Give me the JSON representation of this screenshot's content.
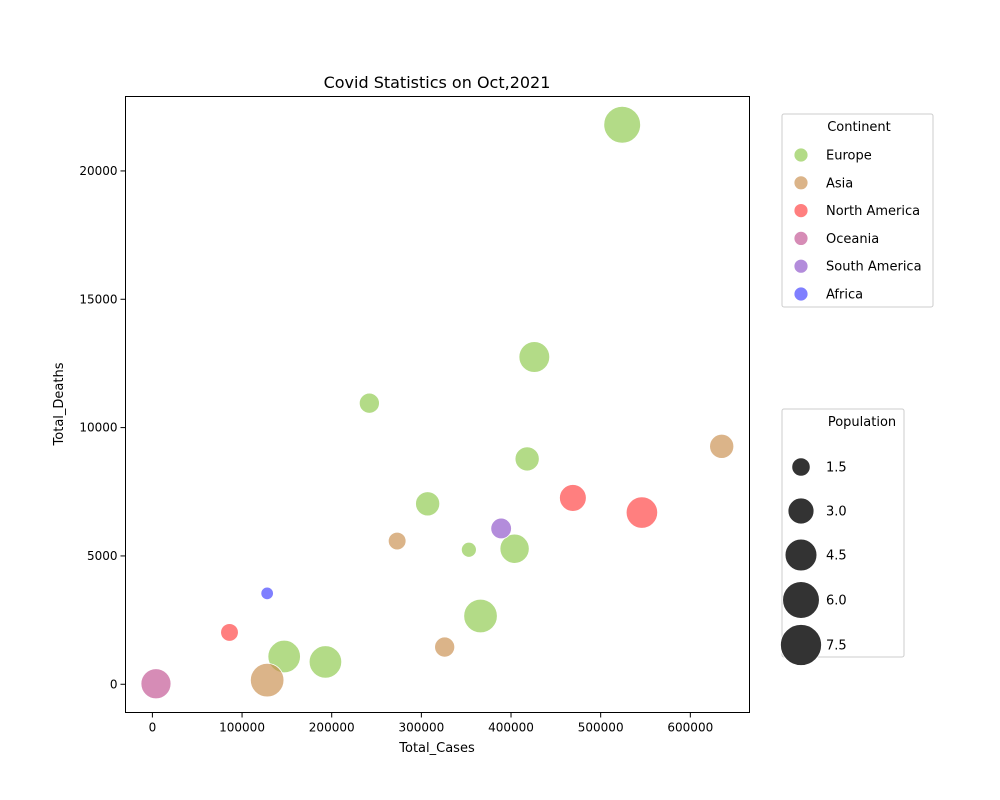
{
  "chart_data": {
    "type": "scatter",
    "title": "Covid Statistics on Oct,2021",
    "xlabel": "Total_Cases",
    "ylabel": "Total_Deaths",
    "xlim": [
      -30000,
      666000
    ],
    "ylim": [
      -1100,
      22900
    ],
    "xticks": [
      0,
      100000,
      200000,
      300000,
      400000,
      500000,
      600000
    ],
    "yticks": [
      0,
      5000,
      10000,
      15000,
      20000
    ],
    "grid": false,
    "continent_legend": {
      "title": "Continent",
      "placement": "outside-right-top",
      "entries": [
        {
          "name": "Europe",
          "color": "#8ac847"
        },
        {
          "name": "Asia",
          "color": "#c88c4a"
        },
        {
          "name": "North America",
          "color": "#ff3b3b"
        },
        {
          "name": "Oceania",
          "color": "#c04f8f"
        },
        {
          "name": "South America",
          "color": "#8a4fc8"
        },
        {
          "name": "Africa",
          "color": "#3a3aff"
        }
      ]
    },
    "population_legend": {
      "title": "Population",
      "placement": "outside-right-middle",
      "color": "#333333",
      "entries": [
        {
          "label": "1.5",
          "value": 1.5
        },
        {
          "label": "3.0",
          "value": 3.0
        },
        {
          "label": "4.5",
          "value": 4.5
        },
        {
          "label": "6.0",
          "value": 6.0
        },
        {
          "label": "7.5",
          "value": 7.5
        }
      ]
    },
    "points": [
      {
        "continent": "Europe",
        "x": 524000,
        "y": 21800,
        "population": 6.0
      },
      {
        "continent": "Europe",
        "x": 426000,
        "y": 12750,
        "population": 4.2
      },
      {
        "continent": "Europe",
        "x": 242000,
        "y": 10950,
        "population": 1.8
      },
      {
        "continent": "Europe",
        "x": 418000,
        "y": 8780,
        "population": 2.6
      },
      {
        "continent": "Europe",
        "x": 307000,
        "y": 7030,
        "population": 2.6
      },
      {
        "continent": "Europe",
        "x": 353000,
        "y": 5240,
        "population": 1.0
      },
      {
        "continent": "Europe",
        "x": 404000,
        "y": 5280,
        "population": 3.8
      },
      {
        "continent": "Europe",
        "x": 366000,
        "y": 2660,
        "population": 5.0
      },
      {
        "continent": "Europe",
        "x": 147000,
        "y": 1080,
        "population": 4.7
      },
      {
        "continent": "Europe",
        "x": 193000,
        "y": 870,
        "population": 4.7
      },
      {
        "continent": "Asia",
        "x": 635000,
        "y": 9270,
        "population": 2.6
      },
      {
        "continent": "Asia",
        "x": 273000,
        "y": 5580,
        "population": 1.4
      },
      {
        "continent": "Asia",
        "x": 326000,
        "y": 1450,
        "population": 1.8
      },
      {
        "continent": "Asia",
        "x": 128000,
        "y": 160,
        "population": 5.0
      },
      {
        "continent": "North America",
        "x": 469000,
        "y": 7260,
        "population": 3.2
      },
      {
        "continent": "North America",
        "x": 546000,
        "y": 6690,
        "population": 4.4
      },
      {
        "continent": "North America",
        "x": 86000,
        "y": 2020,
        "population": 1.4
      },
      {
        "continent": "Oceania",
        "x": 4000,
        "y": 20,
        "population": 4.0
      },
      {
        "continent": "South America",
        "x": 389000,
        "y": 6070,
        "population": 1.9
      },
      {
        "continent": "Africa",
        "x": 128000,
        "y": 3540,
        "population": 0.7
      }
    ]
  }
}
